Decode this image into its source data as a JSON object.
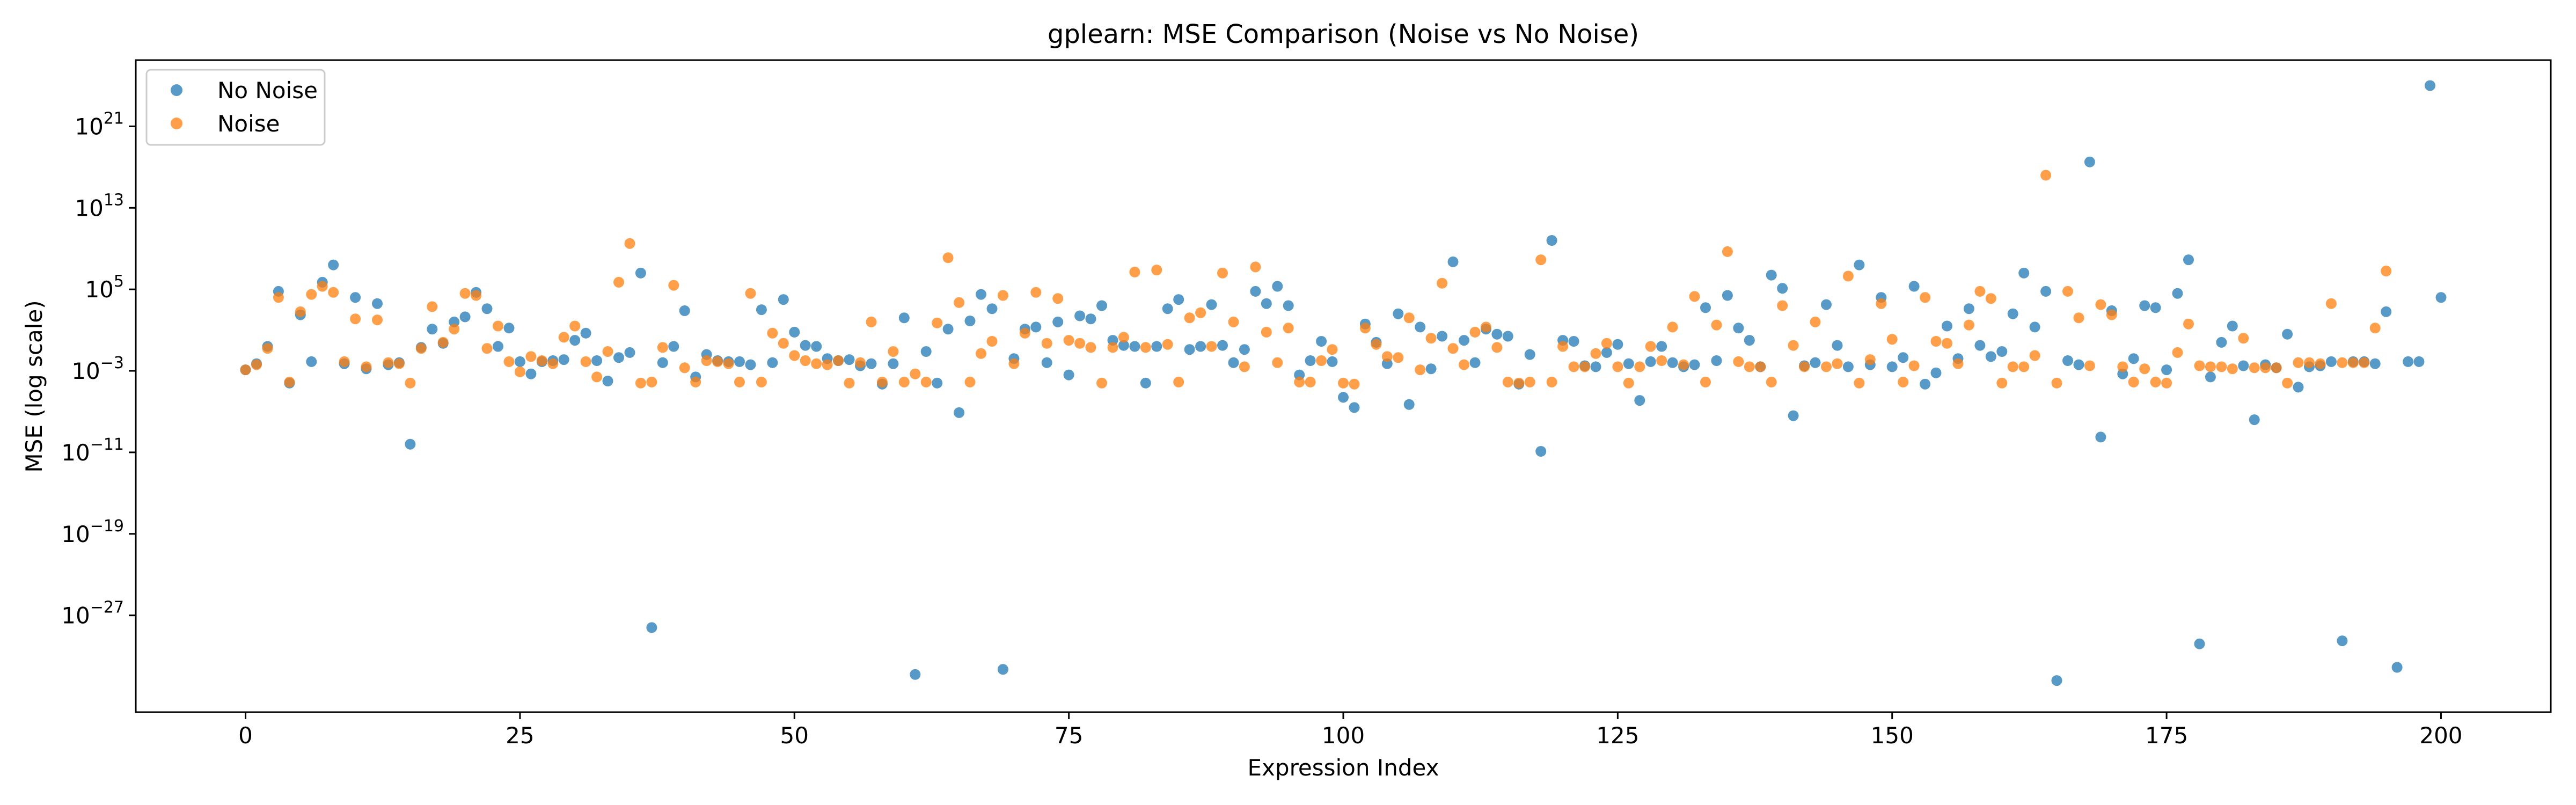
{
  "chart_data": {
    "type": "scatter",
    "title": "gplearn: MSE Comparison (Noise vs No Noise)",
    "xlabel": "Expression Index",
    "ylabel": "MSE (log scale)",
    "xlim": [
      -10,
      210
    ],
    "ylim_log10": [
      -36.5,
      27.5
    ],
    "y_scale": "log",
    "x_ticks": [
      0,
      25,
      50,
      75,
      100,
      125,
      150,
      175,
      200
    ],
    "y_ticks": [
      {
        "base": "10",
        "exp": "−27",
        "log10": -27
      },
      {
        "base": "10",
        "exp": "−19",
        "log10": -19
      },
      {
        "base": "10",
        "exp": "−11",
        "log10": -11
      },
      {
        "base": "10",
        "exp": "−3",
        "log10": -3
      },
      {
        "base": "10",
        "exp": "5",
        "log10": 5
      },
      {
        "base": "10",
        "exp": "13",
        "log10": 13
      },
      {
        "base": "10",
        "exp": "21",
        "log10": 21
      }
    ],
    "grid": false,
    "legend_position": "top-left",
    "series": [
      {
        "name": "No Noise",
        "color": "#1f77b4",
        "log10_mse": [
          -2.9,
          -2.3,
          -0.6,
          4.8,
          -4.2,
          2.5,
          -2.1,
          5.7,
          7.4,
          -2.3,
          4.2,
          -2.8,
          3.6,
          -2.4,
          -2.2,
          -10.2,
          -0.7,
          1.1,
          -0.3,
          1.8,
          2.3,
          4.7,
          3.1,
          -0.6,
          1.2,
          -2.1,
          -3.3,
          -2.1,
          -2.0,
          -1.9,
          0,
          0.7,
          -2.0,
          -4.0,
          -1.7,
          -1.2,
          6.6,
          -28.2,
          -2.2,
          -0.6,
          2.9,
          -3.6,
          -1.4,
          -2.0,
          -2.1,
          -2.1,
          -2.4,
          3.0,
          -2.2,
          4.0,
          0.8,
          -0.5,
          -0.6,
          -1.8,
          -2.0,
          -1.9,
          -2.5,
          -2.3,
          -4.3,
          -2.3,
          2.2,
          -32.8,
          -1.1,
          -4.2,
          1.1,
          -7.1,
          1.9,
          4.5,
          3.1,
          -32.3,
          -1.8,
          1.1,
          1.3,
          -2.2,
          1.8,
          -3.4,
          2.4,
          2.1,
          3.4,
          0,
          -0.5,
          -0.6,
          -4.2,
          -0.6,
          3.1,
          4.0,
          -0.9,
          -0.6,
          3.5,
          -0.5,
          -2.2,
          -0.9,
          4.8,
          3.6,
          5.3,
          3.4,
          -3.4,
          -2.0,
          -0.1,
          -2.1,
          -5.6,
          -6.6,
          1.6,
          -0.2,
          -2.3,
          2.6,
          -6.3,
          1.3,
          -2.8,
          0.4,
          7.7,
          0,
          -2.2,
          1.1,
          0.6,
          0.4,
          -4.3,
          -1.4,
          -10.9,
          9.8,
          0,
          -0.1,
          -2.5,
          -2.6,
          -1.2,
          -0.4,
          -2.3,
          -5.9,
          -2.1,
          -0.6,
          -2.2,
          -2.6,
          -2.4,
          3.2,
          -2.0,
          4.4,
          1.2,
          0,
          -2.6,
          6.4,
          5.1,
          -7.4,
          -2.5,
          -2.2,
          3.5,
          -0.5,
          -2.6,
          7.4,
          -2.4,
          4.2,
          -2.6,
          -1.7,
          5.3,
          -4.3,
          -3.2,
          1.4,
          -1.8,
          3.1,
          -0.5,
          -1.6,
          -1.1,
          2.6,
          6.6,
          1.3,
          4.8,
          -33.4,
          -2.0,
          -2.4,
          17.5,
          -9.5,
          2.9,
          -3.3,
          -1.8,
          3.4,
          3.2,
          -2.9,
          4.6,
          7.9,
          -29.8,
          -3.6,
          -0.2,
          1.4,
          -2.5,
          -7.8,
          -2.4,
          -2.7,
          0.6,
          -4.6,
          -2.6,
          -2.5,
          -2.1,
          -29.5,
          -2.1,
          -2.1,
          -2.3,
          2.8,
          -32.1,
          -2.1,
          -2.1,
          25.0,
          4.2
        ],
        "x_start": 0
      },
      {
        "name": "Noise",
        "color": "#ff7f0e",
        "log10_mse": [
          -2.9,
          -2.4,
          -0.8,
          4.2,
          -4.1,
          2.8,
          4.5,
          5.3,
          4.7,
          -2.1,
          2.1,
          -2.6,
          2.0,
          -2.2,
          -2.3,
          -4.2,
          -0.8,
          3.3,
          -0.2,
          1.1,
          4.6,
          4.4,
          -0.8,
          1.4,
          -2.1,
          -3.1,
          -1.6,
          -2.0,
          -2.3,
          0.3,
          1.4,
          -2.1,
          -3.6,
          -1.1,
          5.7,
          9.5,
          -4.2,
          -4.1,
          -0.7,
          5.4,
          -2.7,
          -4.1,
          -2.0,
          -2.1,
          -2.3,
          -4.1,
          4.6,
          -4.1,
          0.7,
          -0.3,
          -1.5,
          -2.0,
          -2.3,
          -2.4,
          -2.0,
          -4.2,
          -2.2,
          1.8,
          -4.1,
          -1.1,
          -4.1,
          -3.3,
          -4.1,
          1.7,
          8.1,
          3.7,
          -4.1,
          -1.3,
          -0.1,
          4.4,
          -2.3,
          0.7,
          4.7,
          -0.3,
          4.1,
          0,
          -0.3,
          -0.7,
          -4.2,
          -0.7,
          0.3,
          6.7,
          -0.7,
          6.9,
          -0.4,
          -4.1,
          2.2,
          2.7,
          -0.6,
          6.6,
          1.8,
          -2.6,
          7.2,
          0.8,
          -2.2,
          1.2,
          -4.1,
          -4.1,
          -2.0,
          -0.9,
          -4.2,
          -4.3,
          1.2,
          -0.4,
          -1.6,
          -1.7,
          2.2,
          -2.9,
          0.2,
          5.6,
          -0.8,
          -2.4,
          0.8,
          1.3,
          -0.7,
          -4.1,
          -4.2,
          -4.1,
          7.9,
          -4.1,
          -0.6,
          -2.6,
          -2.6,
          -1.3,
          -0.3,
          -2.6,
          -4.2,
          -2.6,
          -0.6,
          -2.0,
          1.3,
          -2.4,
          4.3,
          -4.1,
          1.5,
          8.7,
          -2.1,
          -2.6,
          -2.6,
          -4.1,
          3.4,
          -0.5,
          -2.6,
          1.8,
          -2.6,
          -2.3,
          6.3,
          -4.2,
          -1.9,
          3.6,
          0.1,
          -4.1,
          -2.5,
          4.2,
          -0.1,
          -0.3,
          -2.3,
          1.5,
          4.8,
          4.1,
          -4.2,
          -2.6,
          -2.6,
          -1.5,
          16.2,
          -4.2,
          4.8,
          2.2,
          -2.5,
          3.5,
          2.5,
          -2.6,
          -4.1,
          -2.8,
          -4.1,
          -4.2,
          -1.2,
          1.6,
          -2.5,
          -2.6,
          -2.6,
          -2.8,
          0.2,
          -2.7,
          -2.7,
          -2.7,
          -4.2,
          -2.2,
          -2.2,
          -2.3,
          3.6,
          -2.2,
          -2.2,
          -2.2,
          1.2,
          6.8
        ],
        "x_start": 0
      }
    ]
  }
}
